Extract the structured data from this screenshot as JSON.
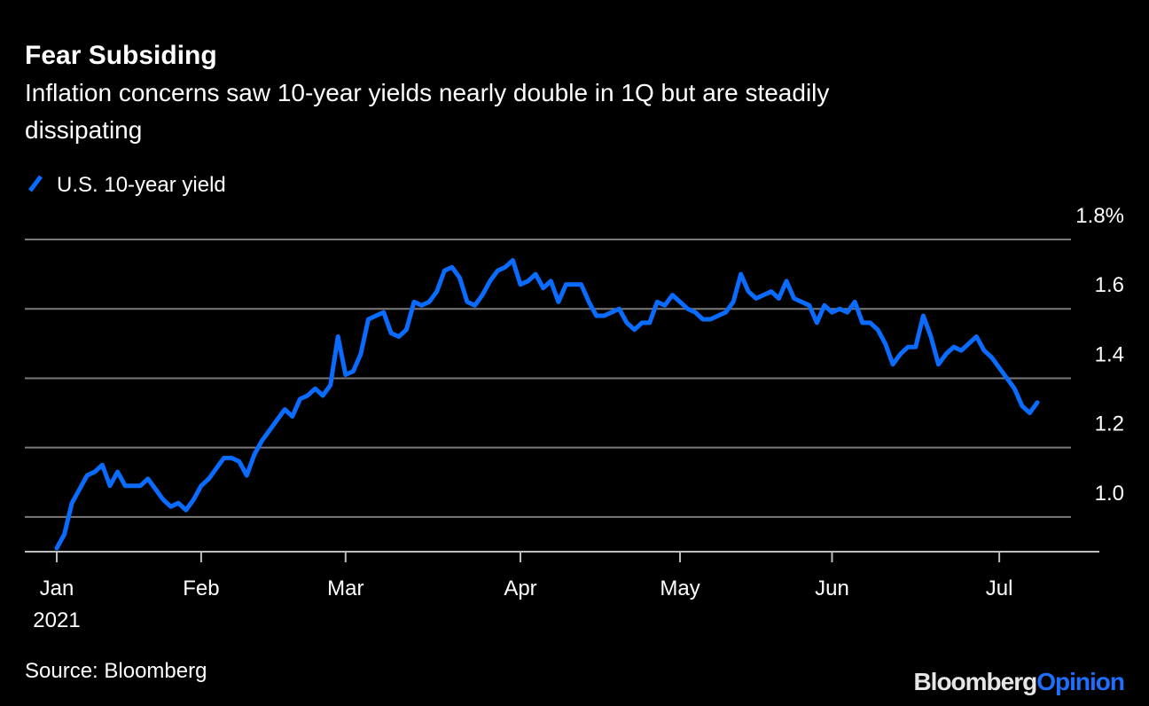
{
  "chart_data": {
    "type": "line",
    "title": "Fear Subsiding",
    "subtitle": [
      "Inflation concerns saw 10-year yields nearly double in 1Q but are steadily",
      "dissipating"
    ],
    "source": "Source: Bloomberg",
    "logo": {
      "brand": "Bloomberg",
      "product": "Opinion"
    },
    "x_year_label": "2021",
    "categories": [
      "Jan",
      null,
      null,
      null,
      null,
      null,
      null,
      null,
      null,
      null,
      null,
      null,
      null,
      null,
      null,
      null,
      null,
      null,
      null,
      "Feb",
      null,
      null,
      null,
      null,
      null,
      null,
      null,
      null,
      null,
      null,
      null,
      null,
      null,
      null,
      null,
      null,
      null,
      null,
      "Mar",
      null,
      null,
      null,
      null,
      null,
      null,
      null,
      null,
      null,
      null,
      null,
      null,
      null,
      null,
      null,
      null,
      null,
      null,
      null,
      null,
      null,
      null,
      "Apr",
      null,
      null,
      null,
      null,
      null,
      null,
      null,
      null,
      null,
      null,
      null,
      null,
      null,
      null,
      null,
      null,
      null,
      null,
      null,
      null,
      "May",
      null,
      null,
      null,
      null,
      null,
      null,
      null,
      null,
      null,
      null,
      null,
      null,
      null,
      null,
      null,
      null,
      null,
      null,
      null,
      "Jun",
      null,
      null,
      null,
      null,
      null,
      null,
      null,
      null,
      null,
      null,
      null,
      null,
      null,
      null,
      null,
      null,
      null,
      null,
      null,
      null,
      null,
      "Jul",
      null,
      null,
      null,
      null,
      null
    ],
    "series": [
      {
        "name": "U.S. 10-year yield",
        "color": "#0a6cff",
        "values": [
          0.91,
          0.95,
          1.04,
          1.08,
          1.12,
          1.13,
          1.15,
          1.09,
          1.13,
          1.09,
          1.09,
          1.09,
          1.11,
          1.08,
          1.05,
          1.03,
          1.04,
          1.02,
          1.05,
          1.09,
          1.11,
          1.14,
          1.17,
          1.17,
          1.16,
          1.12,
          1.18,
          1.22,
          1.25,
          1.28,
          1.31,
          1.29,
          1.34,
          1.35,
          1.37,
          1.35,
          1.38,
          1.52,
          1.41,
          1.42,
          1.47,
          1.57,
          1.58,
          1.59,
          1.53,
          1.52,
          1.54,
          1.62,
          1.61,
          1.62,
          1.65,
          1.71,
          1.72,
          1.69,
          1.62,
          1.61,
          1.64,
          1.68,
          1.71,
          1.72,
          1.74,
          1.67,
          1.68,
          1.7,
          1.66,
          1.68,
          1.62,
          1.67,
          1.67,
          1.67,
          1.62,
          1.58,
          1.58,
          1.59,
          1.6,
          1.56,
          1.54,
          1.56,
          1.56,
          1.62,
          1.61,
          1.64,
          1.62,
          1.6,
          1.59,
          1.57,
          1.57,
          1.58,
          1.59,
          1.62,
          1.7,
          1.65,
          1.63,
          1.64,
          1.65,
          1.63,
          1.68,
          1.63,
          1.62,
          1.61,
          1.56,
          1.61,
          1.59,
          1.6,
          1.59,
          1.62,
          1.56,
          1.56,
          1.54,
          1.5,
          1.44,
          1.47,
          1.49,
          1.49,
          1.58,
          1.52,
          1.44,
          1.47,
          1.49,
          1.48,
          1.5,
          1.52,
          1.48,
          1.46,
          1.43,
          1.4,
          1.37,
          1.32,
          1.3,
          1.33
        ]
      }
    ],
    "ylim": [
      0.9,
      1.8
    ],
    "yticks": [
      {
        "value": 1,
        "label": "1.0"
      },
      1.2,
      1.4,
      1.6,
      {
        "value": 1.8,
        "label": "1.8%"
      }
    ],
    "grid": true
  }
}
